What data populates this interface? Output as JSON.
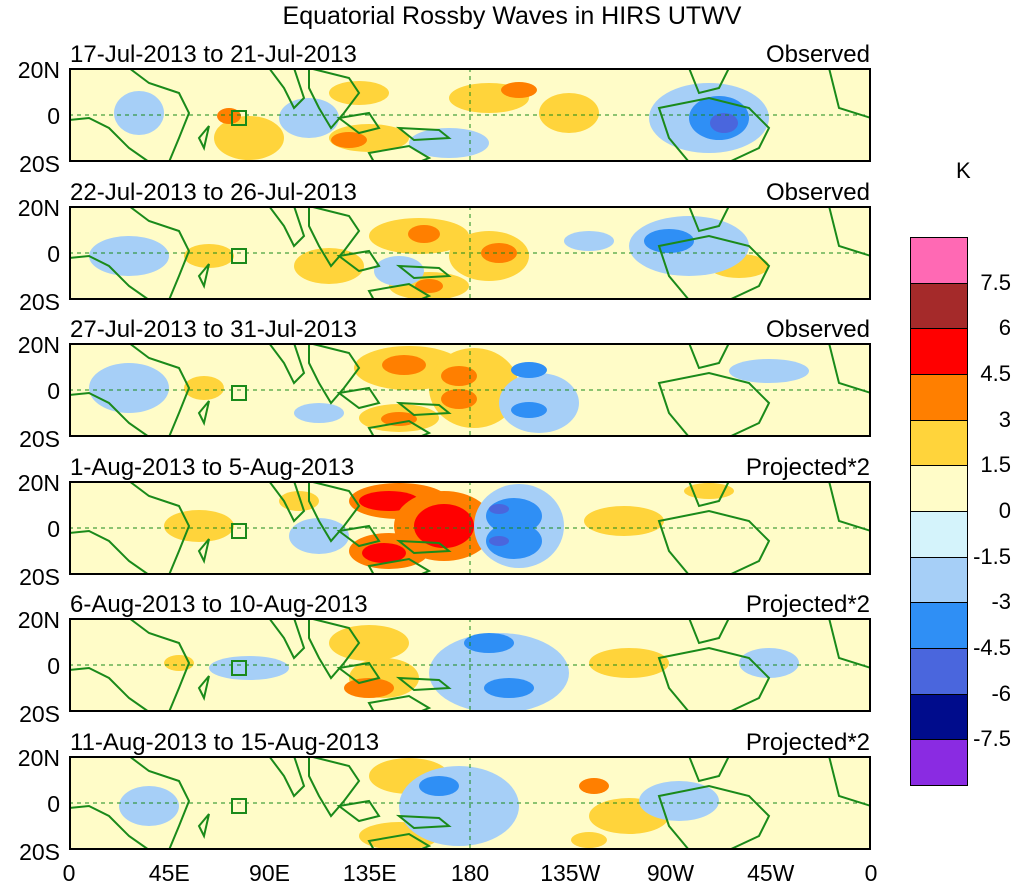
{
  "title": "Equatorial Rossby Waves in HIRS UTWV",
  "lat_labels": [
    "20N",
    "0",
    "20S"
  ],
  "lon_labels": [
    "0",
    "45E",
    "90E",
    "135E",
    "180",
    "135W",
    "90W",
    "45W",
    "0"
  ],
  "colorbar": {
    "unit": "K",
    "levels": [
      "7.5",
      "6",
      "4.5",
      "3",
      "1.5",
      "0",
      "-1.5",
      "-3",
      "-4.5",
      "-6",
      "-7.5"
    ],
    "colors": [
      "#ff69b4",
      "#a52a2a",
      "#ff0000",
      "#ff7f00",
      "#ffd43b",
      "#fffcc8",
      "#d4f3fb",
      "#a6cff7",
      "#2f8ff5",
      "#4a66dd",
      "#000c8c",
      "#8a2be2"
    ]
  },
  "panels": [
    {
      "date": "17-Jul-2013 to 21-Jul-2013",
      "kind": "Observed"
    },
    {
      "date": "22-Jul-2013 to 26-Jul-2013",
      "kind": "Observed"
    },
    {
      "date": "27-Jul-2013 to 31-Jul-2013",
      "kind": "Observed"
    },
    {
      "date": "1-Aug-2013 to 5-Aug-2013",
      "kind": "Projected*2"
    },
    {
      "date": "6-Aug-2013 to 10-Aug-2013",
      "kind": "Projected*2"
    },
    {
      "date": "11-Aug-2013 to 15-Aug-2013",
      "kind": "Projected*2"
    }
  ]
}
